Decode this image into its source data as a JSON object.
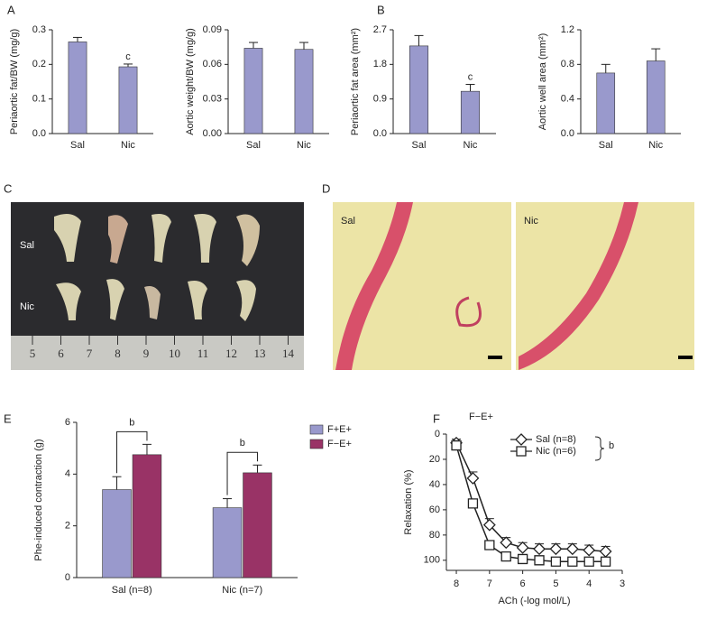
{
  "panel_labels": [
    "A",
    "B",
    "C",
    "D",
    "E",
    "F"
  ],
  "photo_c": {
    "row_labels": [
      "Sal",
      "Nic"
    ],
    "ruler": [
      "5",
      "6",
      "7",
      "8",
      "9",
      "10",
      "11",
      "12",
      "13",
      "14"
    ]
  },
  "photo_d": {
    "labels": [
      "Sal",
      "Nic"
    ]
  },
  "chart_data": [
    {
      "type": "bar",
      "y_label": "Periaortic fat/BW (mg/g)",
      "categories": [
        "Sal",
        "Nic"
      ],
      "values": [
        0.265,
        0.193
      ],
      "errors": [
        0.013,
        0.008
      ],
      "color": "#9999cc",
      "ylim": [
        0,
        0.3
      ],
      "yticks": [
        {
          "value": 0,
          "label": "0.0"
        },
        0.1,
        0.2,
        0.3
      ],
      "annotation": "c"
    },
    {
      "type": "bar",
      "y_label": "Aortic weight/BW (mg/g)",
      "categories": [
        "Sal",
        "Nic"
      ],
      "values": [
        0.074,
        0.073
      ],
      "errors": [
        0.005,
        0.006
      ],
      "color": "#9999cc",
      "ylim": [
        0,
        0.09
      ],
      "yticks": [
        {
          "value": 0,
          "label": "0.00"
        },
        0.03,
        0.06,
        0.09
      ]
    },
    {
      "type": "bar",
      "y_label": "Periaortic fat area (mm²)",
      "categories": [
        "Sal",
        "Nic"
      ],
      "values": [
        2.28,
        1.1
      ],
      "errors": [
        0.27,
        0.18
      ],
      "color": "#9999cc",
      "ylim": [
        0,
        2.7
      ],
      "yticks": [
        {
          "value": 0,
          "label": "0.0"
        },
        0.9,
        1.8,
        2.7
      ],
      "annotation": "c"
    },
    {
      "type": "bar",
      "y_label": "Aortic well area (mm²)",
      "categories": [
        "Sal",
        "Nic"
      ],
      "values": [
        0.7,
        0.84
      ],
      "errors": [
        0.1,
        0.14
      ],
      "color": "#9999cc",
      "ylim": [
        0,
        1.2
      ],
      "yticks": [
        {
          "value": 0,
          "label": "0.0"
        },
        0.4,
        0.8,
        1.2
      ]
    },
    {
      "type": "grouped_bar",
      "y_label": "Phe-induced contraction (g)",
      "categories": [
        "Sal (n=8)",
        "Nic (n=7)"
      ],
      "series": [
        {
          "name": "F+E+",
          "color": "#9999cc",
          "values": [
            3.4,
            2.7
          ],
          "errors": [
            0.5,
            0.35
          ]
        },
        {
          "name": "F−E+",
          "color": "#993366",
          "values": [
            4.75,
            4.05
          ],
          "errors": [
            0.4,
            0.3
          ]
        }
      ],
      "ylim": [
        0,
        6
      ],
      "yticks": [
        0,
        2,
        4,
        6
      ],
      "annotations": [
        "b",
        "b"
      ]
    },
    {
      "type": "line",
      "title": "F−E+",
      "x_label": "ACh (-log mol/L)",
      "y_label": "Relaxation (%)",
      "x": [
        8,
        7.5,
        7,
        6.5,
        6,
        5.5,
        5,
        4.5,
        4,
        3.5
      ],
      "series": [
        {
          "name": "Sal (n=8)",
          "marker": "diamond",
          "values": [
            7,
            35,
            72,
            86,
            90,
            91,
            91,
            91,
            92,
            93
          ],
          "errors": [
            3,
            5,
            5,
            4,
            4,
            4,
            4,
            4,
            4,
            4
          ]
        },
        {
          "name": "Nic (n=6)",
          "marker": "square",
          "values": [
            9,
            55,
            88,
            97,
            99,
            100,
            101,
            101,
            101,
            101
          ],
          "errors": [
            3,
            3,
            3,
            2,
            2,
            2,
            2,
            2,
            2,
            2
          ]
        }
      ],
      "xlim": [
        8.3,
        3
      ],
      "xticks": [
        8,
        7,
        6,
        5,
        4,
        3
      ],
      "ylim": [
        0,
        108
      ],
      "yticks": [
        0,
        20,
        40,
        60,
        80,
        100
      ],
      "y_inverted": true,
      "annotation": "b"
    }
  ]
}
